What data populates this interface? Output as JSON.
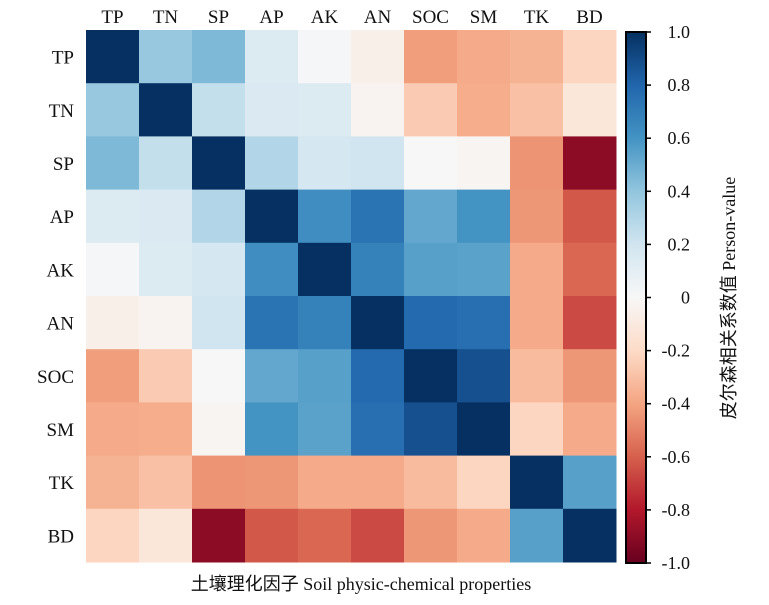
{
  "chart_data": {
    "type": "heatmap",
    "title": "",
    "xlabel": "土壤理化因子 Soil physic-chemical properties",
    "ylabel": "",
    "colorbar_label": "皮尔森相关系数值 Person-value",
    "colormap": "RdBu",
    "vmin": -1.0,
    "vmax": 1.0,
    "colorbar_ticks": [
      "1.0",
      "0.8",
      "0.6",
      "0.4",
      "0.2",
      "0",
      "-0.2",
      "-0.4",
      "-0.6",
      "-0.8",
      "-1.0"
    ],
    "colorbar_tick_values": [
      1.0,
      0.8,
      0.6,
      0.4,
      0.2,
      0,
      -0.2,
      -0.4,
      -0.6,
      -0.8,
      -1.0
    ],
    "x_categories": [
      "TP",
      "TN",
      "SP",
      "AP",
      "AK",
      "AN",
      "SOC",
      "SM",
      "TK",
      "BD"
    ],
    "y_categories": [
      "TP",
      "TN",
      "SP",
      "AP",
      "AK",
      "AN",
      "SOC",
      "SM",
      "TK",
      "BD"
    ],
    "x_axis_position": "top",
    "colorbar_position": "right",
    "grid": false,
    "values": [
      [
        1.0,
        0.38,
        0.45,
        0.14,
        0.01,
        -0.06,
        -0.42,
        -0.38,
        -0.35,
        -0.22
      ],
      [
        0.38,
        1.0,
        0.24,
        0.15,
        0.14,
        -0.03,
        -0.26,
        -0.37,
        -0.3,
        -0.12
      ],
      [
        0.45,
        0.24,
        1.0,
        0.3,
        0.18,
        0.2,
        0.0,
        -0.02,
        -0.45,
        -0.9
      ],
      [
        0.14,
        0.15,
        0.3,
        1.0,
        0.62,
        0.74,
        0.52,
        0.6,
        -0.44,
        -0.62
      ],
      [
        0.01,
        0.14,
        0.18,
        0.62,
        1.0,
        0.68,
        0.55,
        0.54,
        -0.38,
        -0.58
      ],
      [
        -0.06,
        -0.03,
        0.2,
        0.74,
        0.68,
        1.0,
        0.78,
        0.76,
        -0.38,
        -0.66
      ],
      [
        -0.42,
        -0.26,
        0.0,
        0.52,
        0.55,
        0.78,
        1.0,
        0.88,
        -0.32,
        -0.44
      ],
      [
        -0.38,
        -0.37,
        -0.02,
        0.6,
        0.54,
        0.76,
        0.88,
        1.0,
        -0.22,
        -0.38
      ],
      [
        -0.35,
        -0.3,
        -0.45,
        -0.44,
        -0.38,
        -0.38,
        -0.32,
        -0.22,
        1.0,
        0.55
      ],
      [
        -0.22,
        -0.12,
        -0.9,
        -0.62,
        -0.58,
        -0.66,
        -0.44,
        -0.38,
        0.55,
        1.0
      ]
    ]
  },
  "colors": {
    "rdbu_stops": [
      "#67001f",
      "#b2182b",
      "#d6604d",
      "#f4a582",
      "#fddbc7",
      "#f7f7f7",
      "#d1e5f0",
      "#92c5de",
      "#4393c3",
      "#2166ac",
      "#053061"
    ]
  }
}
